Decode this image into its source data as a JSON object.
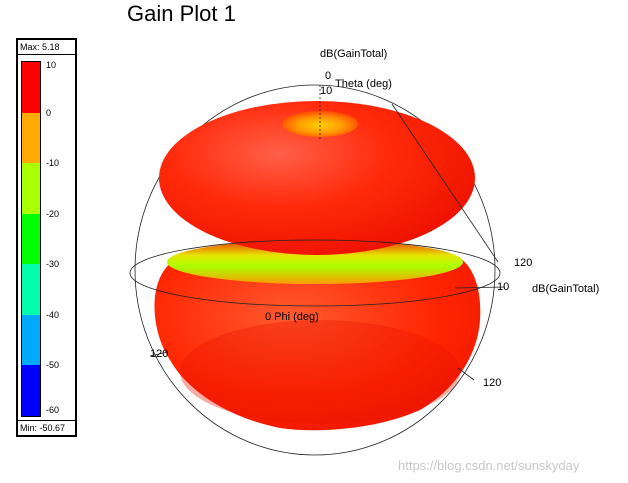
{
  "chart_data": {
    "type": "3d-radiation-pattern",
    "title": "Gain Plot 1",
    "quantity": "dB(GainTotal)",
    "legend": {
      "max_label": "Max: 5.18",
      "min_label": "Min: -50.67",
      "max": 5.18,
      "min": -50.67,
      "ticks": [
        "10",
        "0",
        "-10",
        "-20",
        "-30",
        "-40",
        "-50",
        "-60"
      ],
      "colors": [
        "#ff0000",
        "#ffaa00",
        "#aaff00",
        "#00ff00",
        "#00ffaa",
        "#00aaff",
        "#0000ff"
      ]
    },
    "axes": {
      "z_label": "dB(GainTotal)",
      "z_tick_0": "0",
      "theta_label": "Theta (deg)",
      "z_tick_10": "10",
      "x_tick_120": "120",
      "x_tick_10": "10",
      "x_label": "dB(GainTotal)",
      "phi_label": "0 Phi (deg)",
      "left_tick_120": "120",
      "bottom_tick_120": "120"
    }
  },
  "watermark": "https://blog.csdn.net/sunskyday"
}
